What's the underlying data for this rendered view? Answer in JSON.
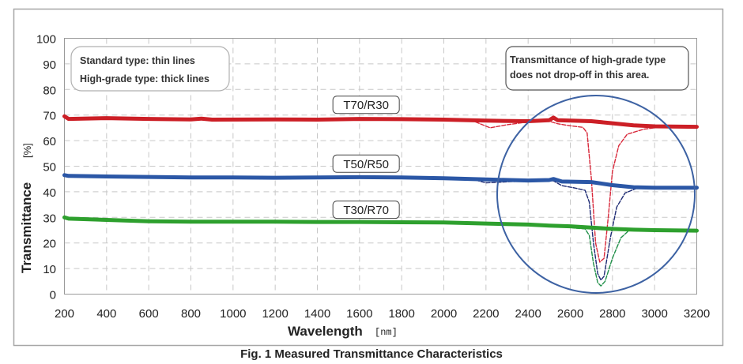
{
  "chart_data": {
    "type": "line",
    "title": "",
    "caption": "Fig. 1 Measured Transmittance Characteristics",
    "xlabel": "Wavelength",
    "xlabel_unit": "[nm]",
    "ylabel": "Transmittance",
    "ylabel_unit": "[%]",
    "xlim": [
      200,
      3200
    ],
    "ylim": [
      0,
      100
    ],
    "xticks": [
      200,
      400,
      600,
      800,
      1000,
      1200,
      1400,
      1600,
      1800,
      2000,
      2200,
      2400,
      2600,
      2800,
      3000,
      3200
    ],
    "yticks": [
      0,
      10,
      20,
      30,
      40,
      50,
      60,
      70,
      80,
      90,
      100
    ],
    "grid": true,
    "legend_box": {
      "lines": [
        "Standard type: thin lines",
        "High-grade type: thick lines"
      ],
      "placement": "top-left"
    },
    "annotation": {
      "lines": [
        "Transmittance of high-grade type",
        "does not drop-off in this area."
      ],
      "placement": "top-right",
      "highlight_region_x": [
        2100,
        3200
      ],
      "highlight_region_y": [
        0,
        100
      ]
    },
    "series_labels": [
      {
        "text": "T70/R30",
        "x": 1500,
        "y": 74
      },
      {
        "text": "T50/R50",
        "x": 1500,
        "y": 51
      },
      {
        "text": "T30/R70",
        "x": 1500,
        "y": 33
      }
    ],
    "series": [
      {
        "name": "T70/R30 high-grade",
        "type": "thick",
        "color": "#cc1f26",
        "points": [
          [
            200,
            69.5
          ],
          [
            220,
            68.5
          ],
          [
            400,
            68.8
          ],
          [
            600,
            68.5
          ],
          [
            800,
            68.3
          ],
          [
            850,
            68.6
          ],
          [
            900,
            68.2
          ],
          [
            1200,
            68.3
          ],
          [
            1400,
            68.2
          ],
          [
            1600,
            68.5
          ],
          [
            1800,
            68.4
          ],
          [
            2000,
            68.2
          ],
          [
            2200,
            67.8
          ],
          [
            2400,
            67.6
          ],
          [
            2500,
            68
          ],
          [
            2520,
            69
          ],
          [
            2540,
            68
          ],
          [
            2700,
            67.6
          ],
          [
            2800,
            66.8
          ],
          [
            2900,
            66
          ],
          [
            3000,
            65.6
          ],
          [
            3200,
            65.4
          ]
        ]
      },
      {
        "name": "T70/R30 standard",
        "type": "thin",
        "color": "#d8283a",
        "points": [
          [
            2150,
            67.3
          ],
          [
            2220,
            65
          ],
          [
            2300,
            66.2
          ],
          [
            2400,
            67.3
          ],
          [
            2500,
            67.6
          ],
          [
            2540,
            66.6
          ],
          [
            2600,
            65.8
          ],
          [
            2660,
            65.2
          ],
          [
            2680,
            63
          ],
          [
            2700,
            45
          ],
          [
            2720,
            20
          ],
          [
            2740,
            12.5
          ],
          [
            2760,
            14
          ],
          [
            2780,
            30
          ],
          [
            2800,
            48
          ],
          [
            2830,
            58
          ],
          [
            2870,
            62.5
          ],
          [
            2950,
            64.5
          ],
          [
            3000,
            65
          ]
        ]
      },
      {
        "name": "T50/R50 high-grade",
        "type": "thick",
        "color": "#2b57a6",
        "points": [
          [
            200,
            46.5
          ],
          [
            220,
            46.2
          ],
          [
            400,
            46
          ],
          [
            600,
            45.8
          ],
          [
            800,
            45.6
          ],
          [
            1000,
            45.6
          ],
          [
            1200,
            45.5
          ],
          [
            1400,
            45.6
          ],
          [
            1600,
            45.7
          ],
          [
            1800,
            45.6
          ],
          [
            2000,
            45.3
          ],
          [
            2200,
            44.8
          ],
          [
            2400,
            44.4
          ],
          [
            2500,
            44.6
          ],
          [
            2520,
            45
          ],
          [
            2560,
            44
          ],
          [
            2700,
            43.8
          ],
          [
            2800,
            42.6
          ],
          [
            2900,
            41.8
          ],
          [
            3000,
            41.6
          ],
          [
            3200,
            41.6
          ]
        ]
      },
      {
        "name": "T50/R50 standard",
        "type": "thin",
        "color": "#1d2a73",
        "points": [
          [
            2150,
            44.6
          ],
          [
            2200,
            43.5
          ],
          [
            2300,
            43.9
          ],
          [
            2400,
            44.3
          ],
          [
            2520,
            44.3
          ],
          [
            2560,
            42.4
          ],
          [
            2620,
            41.5
          ],
          [
            2670,
            40.6
          ],
          [
            2690,
            36
          ],
          [
            2710,
            20
          ],
          [
            2730,
            8
          ],
          [
            2745,
            5.5
          ],
          [
            2760,
            7
          ],
          [
            2790,
            22
          ],
          [
            2820,
            34
          ],
          [
            2860,
            39.5
          ],
          [
            2920,
            41.5
          ],
          [
            3000,
            42
          ]
        ]
      },
      {
        "name": "T30/R70 high-grade",
        "type": "thick",
        "color": "#2ea02e",
        "points": [
          [
            200,
            30
          ],
          [
            220,
            29.5
          ],
          [
            400,
            29
          ],
          [
            600,
            28.5
          ],
          [
            800,
            28.3
          ],
          [
            1000,
            28.3
          ],
          [
            1200,
            28.3
          ],
          [
            1400,
            28.2
          ],
          [
            1600,
            28.2
          ],
          [
            1800,
            28.1
          ],
          [
            2000,
            28
          ],
          [
            2200,
            27.6
          ],
          [
            2400,
            27.2
          ],
          [
            2500,
            26.8
          ],
          [
            2600,
            26.5
          ],
          [
            2700,
            26
          ],
          [
            2800,
            25.5
          ],
          [
            2900,
            25.2
          ],
          [
            3000,
            25
          ],
          [
            3200,
            24.8
          ]
        ]
      },
      {
        "name": "T30/R70 standard",
        "type": "thin",
        "color": "#1f8f48",
        "points": [
          [
            2550,
            26.8
          ],
          [
            2620,
            25.8
          ],
          [
            2670,
            25.5
          ],
          [
            2690,
            23
          ],
          [
            2710,
            12
          ],
          [
            2730,
            4.5
          ],
          [
            2745,
            3.2
          ],
          [
            2765,
            5
          ],
          [
            2800,
            14
          ],
          [
            2840,
            22
          ],
          [
            2880,
            25
          ],
          [
            2950,
            25.5
          ]
        ]
      }
    ]
  }
}
